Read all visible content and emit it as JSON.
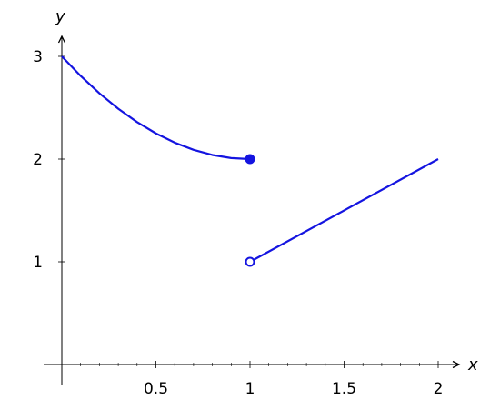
{
  "chart_data": {
    "type": "line",
    "title": "",
    "xlabel": "x",
    "ylabel": "y",
    "xlim": [
      0,
      2
    ],
    "ylim": [
      0,
      3
    ],
    "x_ticks": [
      0.5,
      1,
      1.5,
      2
    ],
    "x_tick_labels": [
      "0.5",
      "1",
      "1.5",
      "2"
    ],
    "y_ticks": [
      1,
      2,
      3
    ],
    "y_tick_labels": [
      "1",
      "2",
      "3"
    ],
    "x_minor_ticks": [
      0.1,
      0.2,
      0.3,
      0.4,
      0.6,
      0.7,
      0.8,
      0.9,
      1.1,
      1.2,
      1.3,
      1.4,
      1.6,
      1.7,
      1.8,
      1.9
    ],
    "grid": false,
    "color": "#1414e0",
    "series": [
      {
        "x": [
          0,
          0.1,
          0.2,
          0.3,
          0.4,
          0.5,
          0.6,
          0.7,
          0.8,
          0.9,
          1.0
        ],
        "y": [
          3,
          2.81,
          2.64,
          2.49,
          2.36,
          2.25,
          2.16,
          2.09,
          2.04,
          2.01,
          2.0
        ]
      },
      {
        "x": [
          1,
          2
        ],
        "y": [
          1,
          2
        ]
      }
    ],
    "points": [
      {
        "x": 1,
        "y": 2,
        "filled": true
      },
      {
        "x": 1,
        "y": 1,
        "filled": false
      }
    ]
  }
}
